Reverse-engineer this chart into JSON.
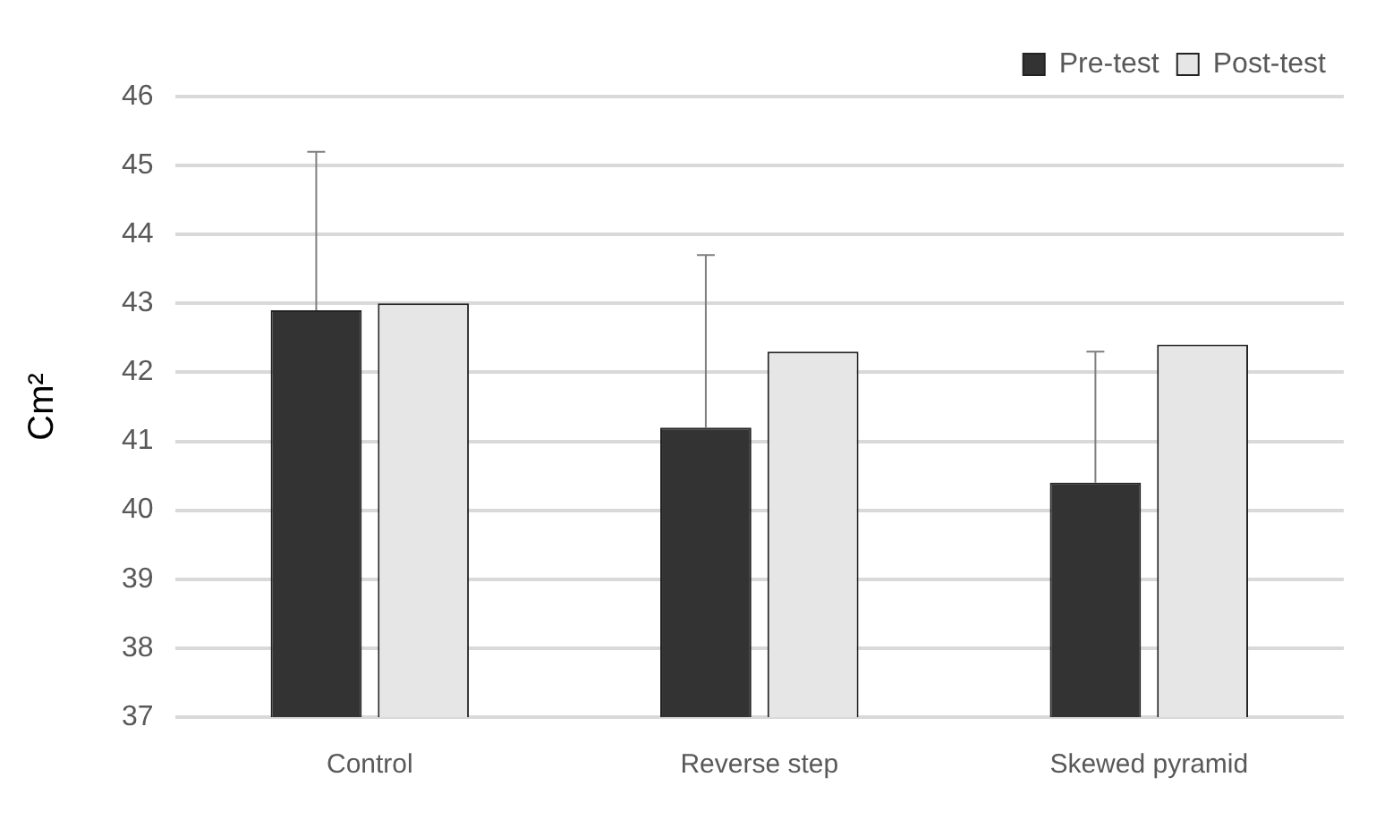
{
  "chart_data": {
    "type": "bar",
    "ylabel": "Cm²",
    "categories": [
      "Control",
      "Reverse step",
      "Skewed pyramid"
    ],
    "series": [
      {
        "name": "Pre-test",
        "color": "#333333",
        "values": [
          42.9,
          41.2,
          40.4
        ],
        "errors": [
          [
            42.9,
            45.2
          ],
          [
            41.2,
            43.7
          ],
          [
            40.4,
            42.3
          ]
        ]
      },
      {
        "name": "Post-test",
        "color": "#e6e6e6",
        "values": [
          43.0,
          42.3,
          42.4
        ]
      }
    ],
    "ylim": [
      37,
      46
    ],
    "yticks": [
      37,
      38,
      39,
      40,
      41,
      42,
      43,
      44,
      45,
      46
    ],
    "grid": "y",
    "legend": "top right"
  }
}
